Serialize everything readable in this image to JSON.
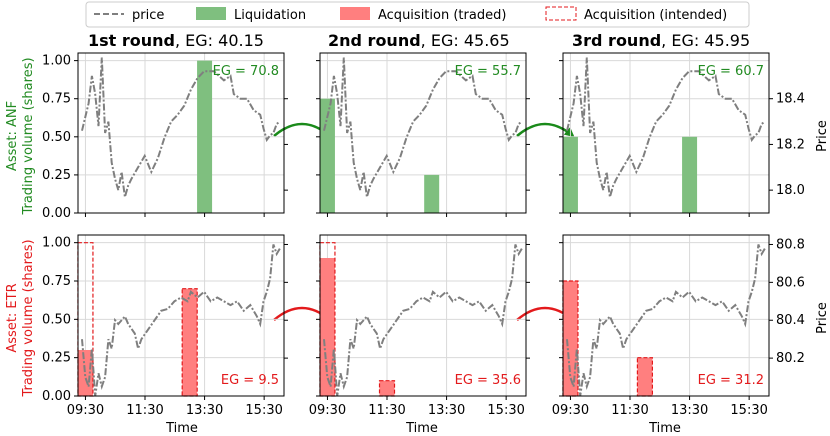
{
  "legend": {
    "price": "price",
    "liquidation": "Liquidation",
    "acq_traded": "Acquisition (traded)",
    "acq_intended": "Acquisition (intended)"
  },
  "colors": {
    "price": "#7f7f7f",
    "liquidation": "#7fbf7f",
    "liquidation_text": "#228b22",
    "acquisition": "#ff7f7f",
    "acquisition_edge": "#e31a1c",
    "acquisition_text": "#e31a1c",
    "arrow_green": "#1a8a1a",
    "arrow_red": "#e31a1c"
  },
  "xlabel": "Time",
  "rows": [
    {
      "ylabel_asset": "Asset: ANF",
      "ylabel_volume": "Trading volume (shares)",
      "color_key": "liquidation_text"
    },
    {
      "ylabel_asset": "Asset: ETR",
      "ylabel_volume": "Trading volume (shares)",
      "color_key": "acquisition_text"
    }
  ],
  "columns": [
    {
      "round": "1st round",
      "eg": "40.15"
    },
    {
      "round": "2nd round",
      "eg": "45.65"
    },
    {
      "round": "3rd round",
      "eg": "45.95"
    }
  ],
  "chart_data": [
    {
      "type": "bar",
      "panel": "ANF round 1",
      "asset": "ANF",
      "round": 1,
      "bar_kind": "liquidation",
      "bars": [
        {
          "time": "13:30",
          "traded": 1.0
        }
      ],
      "label": "EG = 70.8",
      "xlabel": "Time",
      "ylabel": "Trading volume (shares)",
      "ylim": [
        0,
        1.05
      ],
      "xticks": [
        "09:30",
        "11:30",
        "13:30",
        "15:30"
      ],
      "yticks": [
        "0.00",
        "0.25",
        "0.50",
        "0.75",
        "1.00"
      ],
      "right_axis": {
        "ylabel": "Price",
        "ylim": [
          17.9,
          18.6
        ],
        "ticks": [
          "18.0",
          "18.2",
          "18.4"
        ]
      }
    },
    {
      "type": "bar",
      "panel": "ANF round 2",
      "asset": "ANF",
      "round": 2,
      "bar_kind": "liquidation",
      "bars": [
        {
          "time": "09:30",
          "traded": 0.75
        },
        {
          "time": "13:00",
          "traded": 0.25
        }
      ],
      "label": "EG = 55.7",
      "xlabel": "Time",
      "ylabel": "Trading volume (shares)",
      "ylim": [
        0,
        1.05
      ],
      "xticks": [
        "09:30",
        "11:30",
        "13:30",
        "15:30"
      ],
      "yticks": [
        "0.00",
        "0.25",
        "0.50",
        "0.75",
        "1.00"
      ],
      "right_axis": {
        "ylabel": "Price",
        "ylim": [
          17.9,
          18.6
        ],
        "ticks": [
          "18.0",
          "18.2",
          "18.4"
        ]
      }
    },
    {
      "type": "bar",
      "panel": "ANF round 3",
      "asset": "ANF",
      "round": 3,
      "bar_kind": "liquidation",
      "bars": [
        {
          "time": "09:30",
          "traded": 0.5
        },
        {
          "time": "13:30",
          "traded": 0.5
        }
      ],
      "label": "EG = 60.7",
      "xlabel": "Time",
      "ylabel": "Trading volume (shares)",
      "ylim": [
        0,
        1.05
      ],
      "xticks": [
        "09:30",
        "11:30",
        "13:30",
        "15:30"
      ],
      "yticks": [
        "0.00",
        "0.25",
        "0.50",
        "0.75",
        "1.00"
      ],
      "right_axis": {
        "ylabel": "Price",
        "ylim": [
          17.9,
          18.6
        ],
        "ticks": [
          "18.0",
          "18.2",
          "18.4"
        ]
      }
    },
    {
      "type": "bar",
      "panel": "ETR round 1",
      "asset": "ETR",
      "round": 1,
      "bar_kind": "acquisition",
      "bars": [
        {
          "time": "09:30",
          "traded": 0.3,
          "intended": 1.0
        },
        {
          "time": "13:00",
          "traded": 0.7,
          "intended": 0.7
        }
      ],
      "label": "EG = 9.5",
      "xlabel": "Time",
      "ylabel": "Trading volume (shares)",
      "ylim": [
        0,
        1.05
      ],
      "xticks": [
        "09:30",
        "11:30",
        "13:30",
        "15:30"
      ],
      "yticks": [
        "0.00",
        "0.25",
        "0.50",
        "0.75",
        "1.00"
      ],
      "right_axis": {
        "ylabel": "Price",
        "ylim": [
          80.0,
          80.85
        ],
        "ticks": [
          "80.2",
          "80.4",
          "80.6",
          "80.8"
        ]
      }
    },
    {
      "type": "bar",
      "panel": "ETR round 2",
      "asset": "ETR",
      "round": 2,
      "bar_kind": "acquisition",
      "bars": [
        {
          "time": "09:30",
          "traded": 0.9,
          "intended": 1.0
        },
        {
          "time": "11:30",
          "traded": 0.1,
          "intended": 0.1
        }
      ],
      "label": "EG = 35.6",
      "xlabel": "Time",
      "ylabel": "Trading volume (shares)",
      "ylim": [
        0,
        1.05
      ],
      "xticks": [
        "09:30",
        "11:30",
        "13:30",
        "15:30"
      ],
      "yticks": [
        "0.00",
        "0.25",
        "0.50",
        "0.75",
        "1.00"
      ],
      "right_axis": {
        "ylabel": "Price",
        "ylim": [
          80.0,
          80.85
        ],
        "ticks": [
          "80.2",
          "80.4",
          "80.6",
          "80.8"
        ]
      }
    },
    {
      "type": "bar",
      "panel": "ETR round 3",
      "asset": "ETR",
      "round": 3,
      "bar_kind": "acquisition",
      "bars": [
        {
          "time": "09:30",
          "traded": 0.75,
          "intended": 0.75
        },
        {
          "time": "12:00",
          "traded": 0.25,
          "intended": 0.25
        }
      ],
      "label": "EG = 31.2",
      "xlabel": "Time",
      "ylabel": "Trading volume (shares)",
      "ylim": [
        0,
        1.05
      ],
      "xticks": [
        "09:30",
        "11:30",
        "13:30",
        "15:30"
      ],
      "yticks": [
        "0.00",
        "0.25",
        "0.50",
        "0.75",
        "1.00"
      ],
      "right_axis": {
        "ylabel": "Price",
        "ylim": [
          80.0,
          80.85
        ],
        "ticks": [
          "80.2",
          "80.4",
          "80.6",
          "80.8"
        ]
      }
    }
  ],
  "price_series": {
    "ANF": [
      [
        0,
        18.26
      ],
      [
        2,
        18.38
      ],
      [
        3,
        18.5
      ],
      [
        4,
        18.42
      ],
      [
        5,
        18.28
      ],
      [
        6,
        18.58
      ],
      [
        7,
        18.25
      ],
      [
        8,
        18.3
      ],
      [
        9,
        18.12
      ],
      [
        10,
        18.05
      ],
      [
        11,
        18.0
      ],
      [
        12,
        18.08
      ],
      [
        13,
        17.97
      ],
      [
        14,
        18.02
      ],
      [
        15,
        18.05
      ],
      [
        17,
        18.1
      ],
      [
        19,
        18.15
      ],
      [
        21,
        18.08
      ],
      [
        23,
        18.14
      ],
      [
        25,
        18.23
      ],
      [
        27,
        18.3
      ],
      [
        29,
        18.33
      ],
      [
        31,
        18.37
      ],
      [
        33,
        18.44
      ],
      [
        35,
        18.49
      ],
      [
        37,
        18.52
      ],
      [
        40,
        18.52
      ],
      [
        43,
        18.48
      ],
      [
        45,
        18.5
      ],
      [
        46,
        18.42
      ],
      [
        48,
        18.4
      ],
      [
        50,
        18.4
      ],
      [
        52,
        18.35
      ],
      [
        54,
        18.33
      ],
      [
        55,
        18.27
      ],
      [
        56,
        18.22
      ],
      [
        57,
        18.24
      ],
      [
        58,
        18.25
      ],
      [
        59,
        18.29
      ],
      [
        60,
        18.3
      ]
    ],
    "ETR": [
      [
        0,
        80.3
      ],
      [
        1,
        80.1
      ],
      [
        2,
        80.05
      ],
      [
        3,
        80.25
      ],
      [
        4,
        80.0
      ],
      [
        5,
        80.12
      ],
      [
        6,
        80.05
      ],
      [
        7,
        80.1
      ],
      [
        8,
        80.3
      ],
      [
        9,
        80.25
      ],
      [
        10,
        80.4
      ],
      [
        11,
        80.38
      ],
      [
        13,
        80.42
      ],
      [
        14,
        80.38
      ],
      [
        16,
        80.33
      ],
      [
        17,
        80.25
      ],
      [
        18,
        80.3
      ],
      [
        20,
        80.35
      ],
      [
        22,
        80.4
      ],
      [
        24,
        80.45
      ],
      [
        26,
        80.46
      ],
      [
        28,
        80.5
      ],
      [
        30,
        80.52
      ],
      [
        32,
        80.5
      ],
      [
        33,
        80.55
      ],
      [
        35,
        80.52
      ],
      [
        37,
        80.55
      ],
      [
        39,
        80.5
      ],
      [
        41,
        80.52
      ],
      [
        43,
        80.5
      ],
      [
        45,
        80.48
      ],
      [
        47,
        80.5
      ],
      [
        49,
        80.45
      ],
      [
        51,
        80.48
      ],
      [
        53,
        80.42
      ],
      [
        54,
        80.38
      ],
      [
        55,
        80.5
      ],
      [
        56,
        80.55
      ],
      [
        57,
        80.62
      ],
      [
        58,
        80.8
      ],
      [
        59,
        80.75
      ],
      [
        60,
        80.78
      ]
    ]
  }
}
